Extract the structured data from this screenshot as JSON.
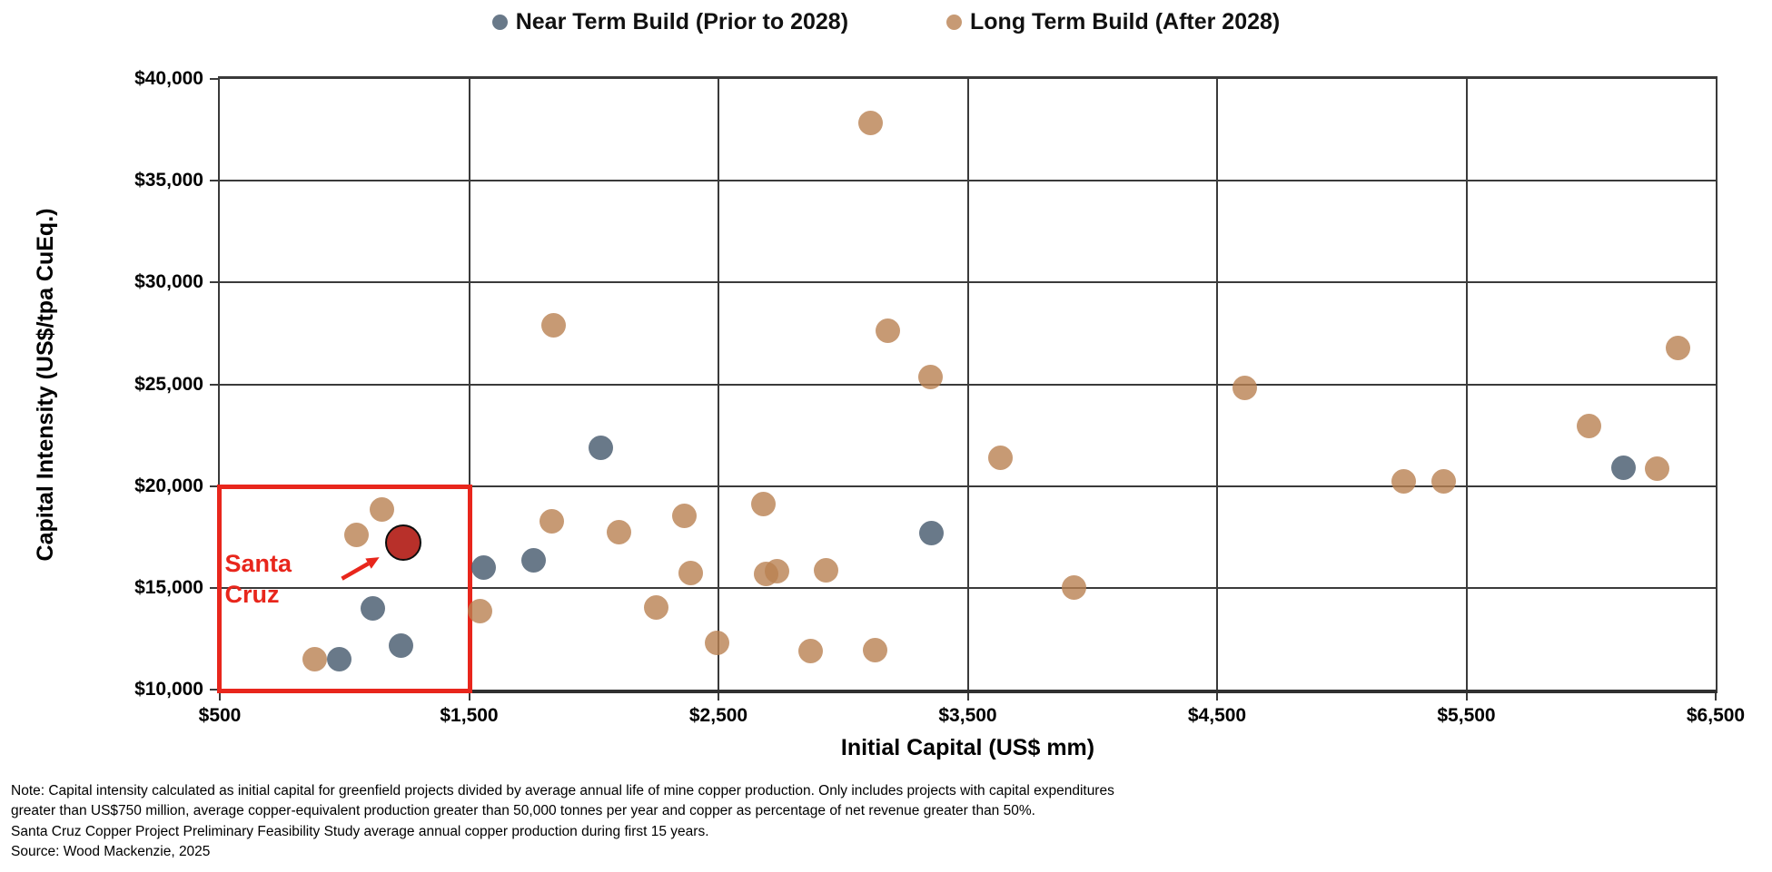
{
  "legend": {
    "items": [
      {
        "label": "Near Term Build (Prior to 2028)",
        "color": "#697989"
      },
      {
        "label": "Long Term Build (After 2028)",
        "color": "#C79A74"
      }
    ]
  },
  "chart_data": {
    "type": "scatter",
    "title": "",
    "xlabel": "Initial Capital (US$ mm)",
    "ylabel": "Capital Intensity (US$/tpa CuEq.)",
    "xlim": [
      500,
      6500
    ],
    "ylim": [
      10000,
      40000
    ],
    "grid": true,
    "legend_position": "top",
    "x_ticks": [
      500,
      1500,
      2500,
      3500,
      4500,
      5500,
      6500
    ],
    "x_tick_labels": [
      "$500",
      "$1,500",
      "$2,500",
      "$3,500",
      "$4,500",
      "$5,500",
      "$6,500"
    ],
    "y_ticks": [
      10000,
      15000,
      20000,
      25000,
      30000,
      35000,
      40000
    ],
    "y_tick_labels": [
      "$10,000",
      "$15,000",
      "$20,000",
      "$25,000",
      "$30,000",
      "$35,000",
      "$40,000"
    ],
    "series": [
      {
        "name": "Near Term Build (Prior to 2028)",
        "color": "rgba(67,87,107,0.8)",
        "marker_size": 27,
        "points": [
          [
            980,
            11500
          ],
          [
            1115,
            14000
          ],
          [
            1225,
            12150
          ],
          [
            1560,
            16000
          ],
          [
            1760,
            16350
          ],
          [
            2030,
            21900
          ],
          [
            3355,
            17700
          ],
          [
            6130,
            20900
          ]
        ]
      },
      {
        "name": "Long Term Build (After 2028)",
        "color": "rgba(185,129,81,0.8)",
        "marker_size": 27,
        "points": [
          [
            880,
            11500
          ],
          [
            1050,
            17600
          ],
          [
            1150,
            18850
          ],
          [
            1545,
            13850
          ],
          [
            1830,
            18250
          ],
          [
            1840,
            27900
          ],
          [
            2100,
            17750
          ],
          [
            2250,
            14050
          ],
          [
            2365,
            18550
          ],
          [
            2390,
            15750
          ],
          [
            2495,
            12300
          ],
          [
            2680,
            19100
          ],
          [
            2690,
            15700
          ],
          [
            2735,
            15800
          ],
          [
            2870,
            11900
          ],
          [
            2930,
            15850
          ],
          [
            3110,
            37850
          ],
          [
            3130,
            11950
          ],
          [
            3180,
            27650
          ],
          [
            3350,
            25350
          ],
          [
            3630,
            21400
          ],
          [
            3925,
            15000
          ],
          [
            4610,
            24800
          ],
          [
            5250,
            20250
          ],
          [
            5410,
            20250
          ],
          [
            5990,
            22950
          ],
          [
            6265,
            20850
          ],
          [
            6350,
            26800
          ]
        ]
      },
      {
        "name": "Santa Cruz",
        "color": "#B8302A",
        "outline": "#0d0d0d",
        "marker_size": 40,
        "points": [
          [
            1235,
            17200
          ]
        ]
      }
    ],
    "annotation": {
      "label": "Santa Cruz",
      "lines": [
        "Santa",
        "Cruz"
      ],
      "color": "#E8261C",
      "box": {
        "x0": 500,
        "x1": 1500,
        "y0": 10000,
        "y1": 20000
      },
      "label_pos": [
        520,
        16950
      ],
      "arrow": {
        "from": [
          990,
          15450
        ],
        "to": [
          1140,
          16500
        ]
      }
    }
  },
  "notes": {
    "lines": [
      "Note: Capital intensity calculated as initial capital for greenfield projects divided by average annual life of mine copper production. Only includes projects with capital expenditures",
      "greater than US$750 million, average copper-equivalent production greater than 50,000 tonnes per year and copper as percentage of net revenue greater than 50%.",
      "Santa Cruz Copper Project Preliminary Feasibility Study average annual copper production during first 15 years.",
      "Source: Wood Mackenzie, 2025"
    ]
  }
}
